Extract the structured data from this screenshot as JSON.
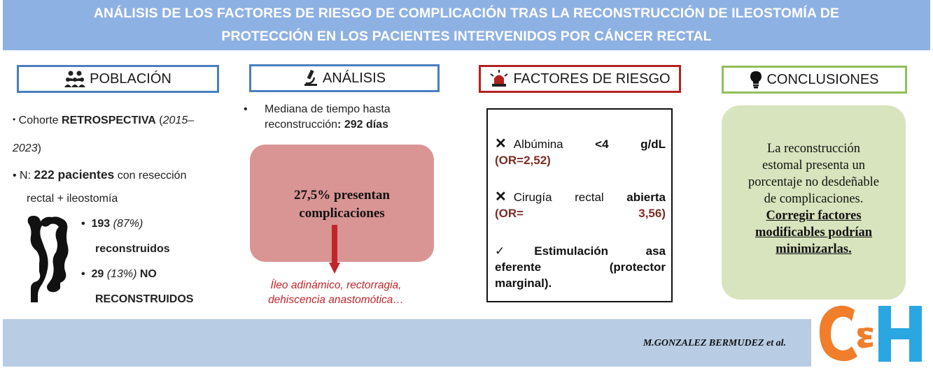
{
  "title": {
    "line1": "ANÁLISIS DE LOS  FACTORES DE RIESGO DE COMPLICACIÓN TRAS LA RECONSTRUCCIÓN DE ILEOSTOMÍA DE",
    "line2": "PROTECCIÓN EN LOS PACIENTES INTERVENIDOS POR CÁNCER RECTAL"
  },
  "headers": {
    "poblacion": "POBLACIÓN",
    "analisis": "ANÁLISIS",
    "factores": "FACTORES DE RIESGO",
    "conclusiones": "CONCLUSIONES"
  },
  "poblacion": {
    "cohort_pre": "Cohorte ",
    "cohort_bold": "RETROSPECTIVA",
    "cohort_paren_open": " (",
    "cohort_years_a": "2015–",
    "cohort_years_b": "2023",
    "cohort_paren_close": ")",
    "n_label": "N: ",
    "n_bold": "222 pacientes",
    "n_rest": " con resección",
    "n_rest2": "rectal + ileostomía",
    "reconstructed_count": "193",
    "reconstructed_pct": " (87%)",
    "reconstructed_label": "reconstruidos",
    "not_reconstructed_count": "29",
    "not_reconstructed_pct": " (13%)",
    "not_reconstructed_label_a": " NO",
    "not_reconstructed_label_b": "RECONSTRUIDOS"
  },
  "analisis": {
    "bullet_line1": "Mediana de tiempo hasta",
    "bullet_line2_pre": "reconstrucción",
    "bullet_line2_bold": ": 292 días",
    "complic_line1": "27,5%  presentan",
    "complic_line2": "complicaciones",
    "ileo_line1": "Íleo adinámico, rectorragia,",
    "ileo_line2": "dehiscencia anastomótica…"
  },
  "factores": {
    "f1_label": "Albúmina",
    "f1_value": "<4",
    "f1_unit": "g/dL",
    "f1_or": "(OR=2,52)",
    "f2_label_a": "Cirugía",
    "f2_label_b": "rectal",
    "f2_bold": "abierta",
    "f2_or_a": "(OR=",
    "f2_or_b": "3,56)",
    "f3_a": "Estimulación",
    "f3_b": "asa",
    "f3_c": "eferente",
    "f3_d": "(protector",
    "f3_e": "marginal)."
  },
  "conclusiones": {
    "line1": "La reconstrucción",
    "line2": "estomal presenta un",
    "line3": "porcentaje no desdeñable",
    "line4": "de complicaciones.",
    "bold1": "Corregir factores",
    "bold2": "modificables podrían",
    "bold3": "minimizarlas."
  },
  "footer": {
    "author": "M.GONZALEZ BERMUDEZ et al."
  },
  "icons": {
    "poblacion": "people-group-icon",
    "analisis": "microscope-icon",
    "factores": "alarm-siren-icon",
    "conclusiones": "lightbulb-icon",
    "colon": "colon-icon",
    "logo": "ch-logo"
  },
  "colors": {
    "title_bg": "#8eb1e3",
    "blue_border": "#4a7ebf",
    "red_border": "#b22222",
    "green_border": "#8fbf5a",
    "complic_bg": "#d99594",
    "concl_bg": "#d7e4bd",
    "footer_bg": "#b8cce4",
    "logo_orange": "#f07e2a",
    "logo_blue": "#2aa6e0"
  }
}
